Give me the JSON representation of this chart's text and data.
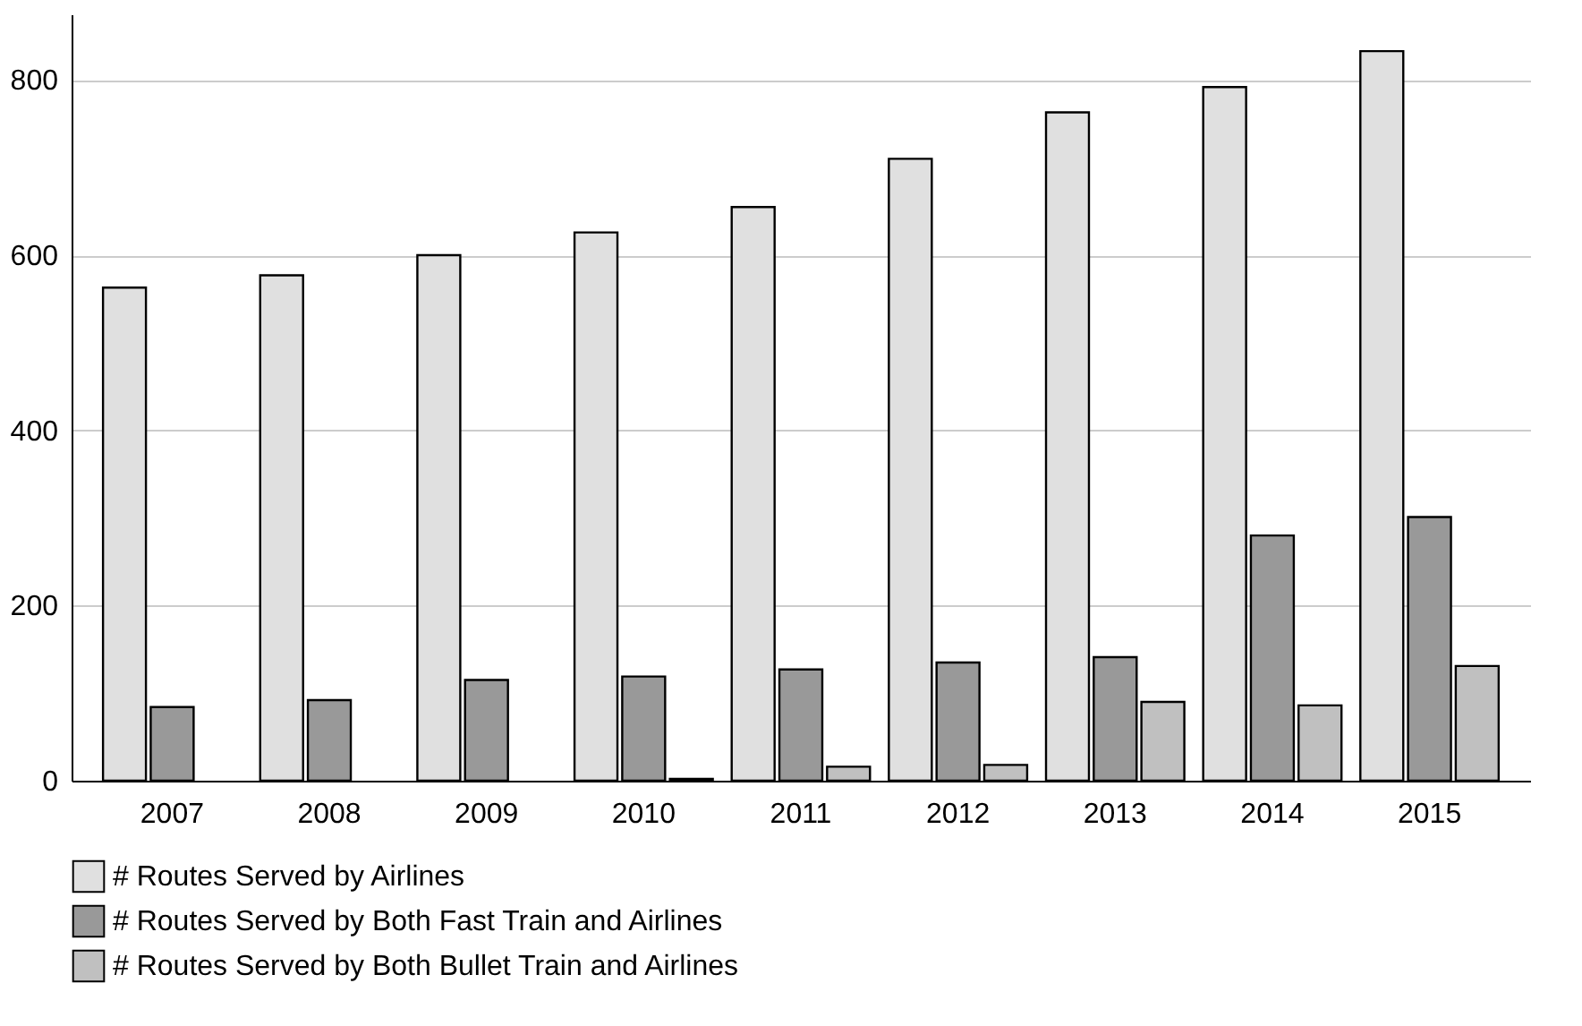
{
  "chart_data": {
    "type": "bar",
    "categories": [
      "2007",
      "2008",
      "2009",
      "2010",
      "2011",
      "2012",
      "2013",
      "2014",
      "2015"
    ],
    "series": [
      {
        "name": "# Routes Served by Airlines",
        "color": "#e0e0e0",
        "values": [
          563,
          577,
          600,
          626,
          655,
          710,
          763,
          792,
          833
        ]
      },
      {
        "name": "# Routes Served by Both Fast Train and Airlines",
        "color": "#999999",
        "values": [
          84,
          92,
          115,
          119,
          127,
          135,
          141,
          280,
          301
        ]
      },
      {
        "name": "# Routes Served by Both Bullet Train and Airlines",
        "color": "#c0c0c0",
        "values": [
          null,
          null,
          null,
          2,
          16,
          18,
          90,
          86,
          131
        ]
      }
    ],
    "ylim": [
      0,
      875
    ],
    "yticks": [
      0,
      200,
      400,
      600,
      800
    ],
    "grid": "y",
    "legend": "bottom"
  }
}
